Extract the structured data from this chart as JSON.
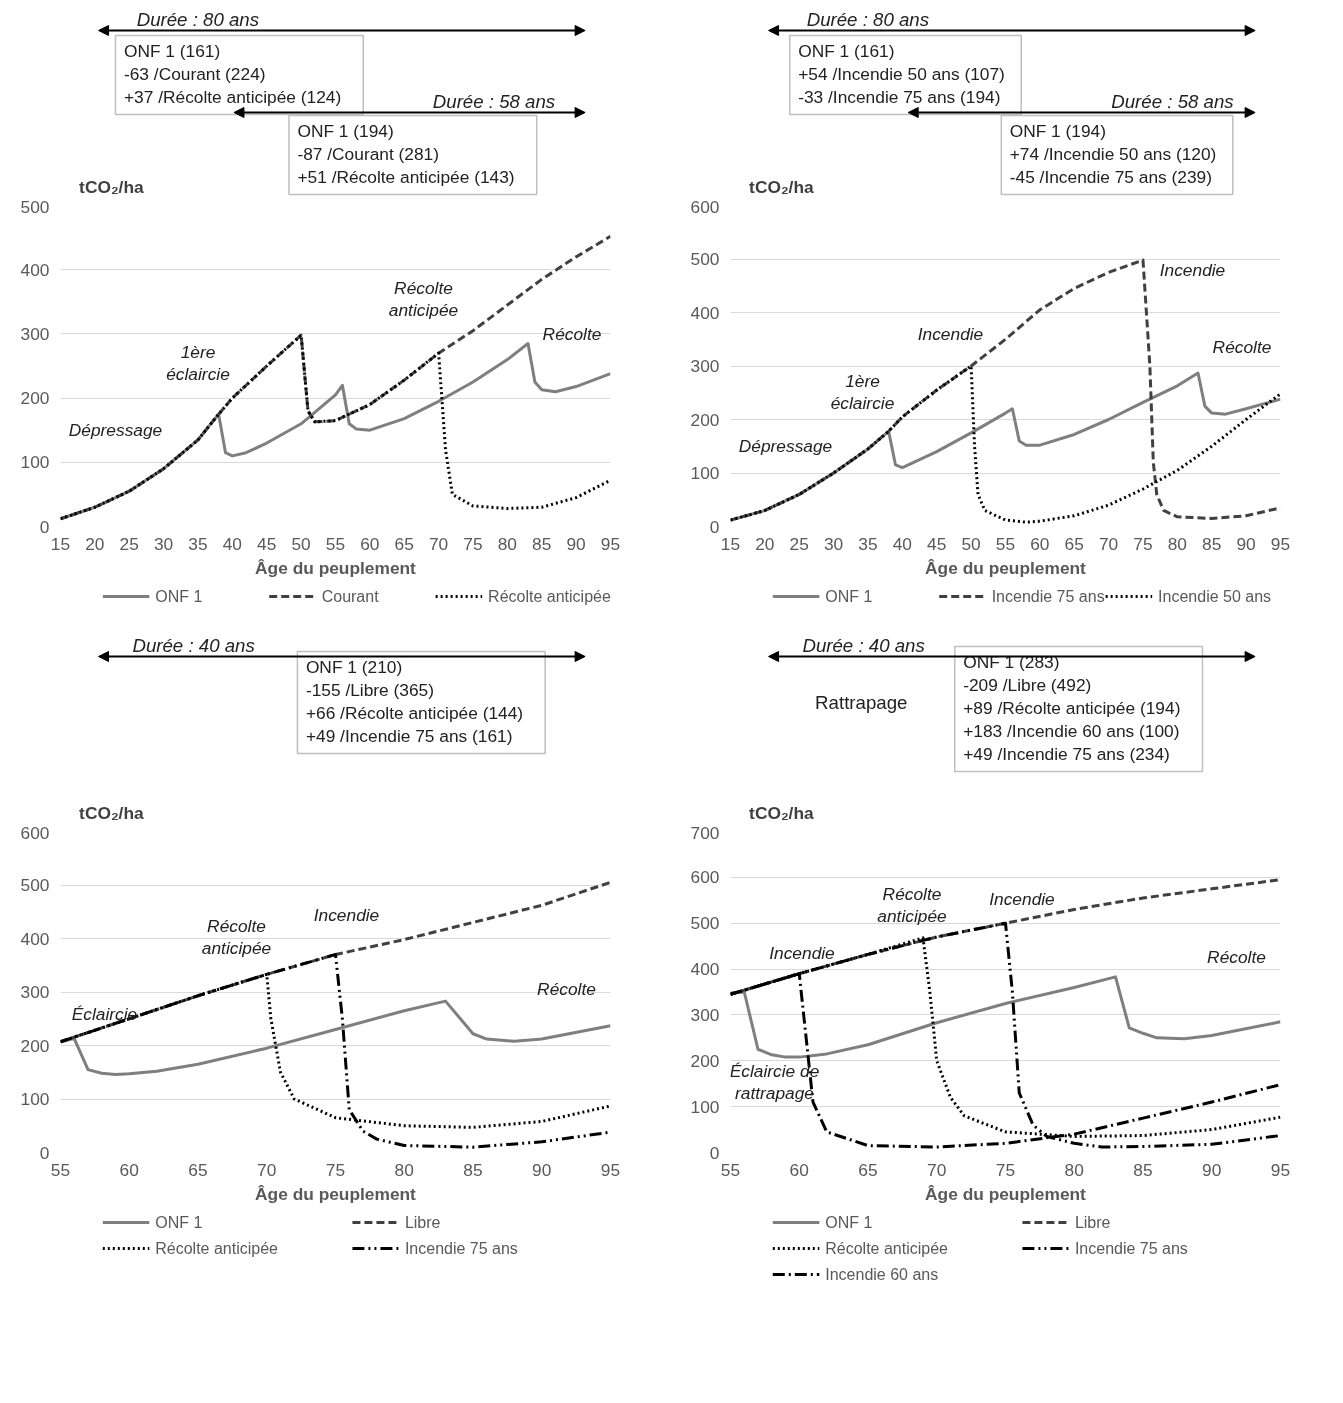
{
  "chart_data": [
    {
      "type": "line",
      "xlabel": "Âge du peuplement",
      "ylabel": "tCO₂/ha",
      "xlim": [
        15,
        95
      ],
      "xticks": [
        15,
        20,
        25,
        30,
        35,
        40,
        45,
        50,
        55,
        60,
        65,
        70,
        75,
        80,
        85,
        90,
        95
      ],
      "ylim": [
        0,
        500
      ],
      "yticks": [
        0,
        100,
        200,
        300,
        400,
        500
      ],
      "grid": "y",
      "legend": "bottom",
      "annotations": [
        "Durée : 80 ans",
        "ONF 1 (161)\n-63 /Courant (224)\n+37 /Récolte anticipée (124)",
        "Durée : 58 ans",
        "ONF 1 (194)\n-87 /Courant (281)\n+51 /Récolte anticipée (143)",
        "Dépressage",
        "1ère\néclaircie",
        "Récolte\nanticipée",
        "Récolte"
      ],
      "series": [
        {
          "name": "ONF 1",
          "color": "#7f7f7f",
          "line_style": "solid",
          "x": [
            15,
            20,
            25,
            30,
            35,
            38,
            39,
            40,
            42,
            45,
            50,
            55,
            56,
            57,
            58,
            60,
            65,
            70,
            75,
            80,
            83,
            84,
            85,
            87,
            90,
            95
          ],
          "values": [
            12,
            30,
            55,
            90,
            135,
            175,
            115,
            110,
            115,
            130,
            160,
            205,
            220,
            160,
            152,
            150,
            168,
            195,
            225,
            260,
            285,
            225,
            213,
            210,
            218,
            238
          ]
        },
        {
          "name": "Courant",
          "color": "#404040",
          "line_style": "dashed",
          "x": [
            15,
            20,
            25,
            30,
            35,
            38,
            40,
            45,
            50,
            51,
            52,
            55,
            60,
            65,
            70,
            75,
            80,
            85,
            90,
            95
          ],
          "values": [
            12,
            30,
            55,
            90,
            135,
            175,
            200,
            250,
            298,
            180,
            163,
            165,
            190,
            228,
            270,
            305,
            345,
            385,
            420,
            452
          ]
        },
        {
          "name": "Récolte anticipée",
          "color": "#000000",
          "line_style": "dotted",
          "x": [
            15,
            20,
            25,
            30,
            35,
            38,
            40,
            45,
            50,
            51,
            52,
            55,
            60,
            65,
            70,
            71,
            72,
            75,
            80,
            85,
            90,
            95
          ],
          "values": [
            12,
            30,
            55,
            90,
            135,
            175,
            200,
            250,
            298,
            180,
            163,
            165,
            190,
            228,
            270,
            120,
            50,
            32,
            28,
            30,
            45,
            72
          ]
        }
      ]
    },
    {
      "type": "line",
      "xlabel": "Âge du peuplement",
      "ylabel": "tCO₂/ha",
      "xlim": [
        15,
        95
      ],
      "xticks": [
        15,
        20,
        25,
        30,
        35,
        40,
        45,
        50,
        55,
        60,
        65,
        70,
        75,
        80,
        85,
        90,
        95
      ],
      "ylim": [
        0,
        600
      ],
      "yticks": [
        0,
        100,
        200,
        300,
        400,
        500,
        600
      ],
      "grid": "y",
      "legend": "bottom",
      "annotations": [
        "Durée : 80 ans",
        "ONF 1 (161)\n+54 /Incendie 50 ans (107)\n-33 /Incendie 75 ans (194)",
        "Durée : 58 ans",
        "ONF 1 (194)\n+74 /Incendie 50 ans (120)\n-45 /Incendie 75 ans (239)",
        "Dépressage",
        "1ère\néclaircie",
        "Incendie",
        "Incendie",
        "Récolte"
      ],
      "series": [
        {
          "name": "ONF 1",
          "color": "#7f7f7f",
          "line_style": "solid",
          "x": [
            15,
            20,
            25,
            30,
            35,
            38,
            39,
            40,
            45,
            50,
            55,
            56,
            57,
            58,
            60,
            65,
            70,
            75,
            80,
            83,
            84,
            85,
            87,
            90,
            95
          ],
          "values": [
            12,
            30,
            60,
            100,
            145,
            178,
            115,
            110,
            140,
            175,
            212,
            220,
            160,
            152,
            152,
            172,
            200,
            232,
            263,
            287,
            225,
            212,
            210,
            220,
            238
          ]
        },
        {
          "name": "Incendie 75 ans",
          "color": "#404040",
          "line_style": "dashed",
          "x": [
            15,
            20,
            25,
            30,
            35,
            38,
            40,
            45,
            50,
            55,
            60,
            65,
            70,
            75,
            76,
            76.5,
            77,
            78,
            80,
            85,
            90,
            95
          ],
          "values": [
            12,
            30,
            60,
            100,
            145,
            178,
            205,
            255,
            300,
            350,
            405,
            445,
            475,
            498,
            300,
            120,
            60,
            30,
            18,
            15,
            20,
            35
          ]
        },
        {
          "name": "Incendie 50 ans",
          "color": "#000000",
          "line_style": "dotted",
          "x": [
            15,
            20,
            25,
            30,
            35,
            38,
            40,
            45,
            50,
            50.5,
            51,
            52,
            55,
            58,
            60,
            65,
            70,
            75,
            80,
            85,
            90,
            95
          ],
          "values": [
            12,
            30,
            60,
            100,
            145,
            178,
            205,
            255,
            300,
            150,
            60,
            30,
            12,
            8,
            10,
            20,
            40,
            70,
            105,
            150,
            200,
            248
          ]
        }
      ]
    },
    {
      "type": "line",
      "xlabel": "Âge du peuplement",
      "ylabel": "tCO₂/ha",
      "xlim": [
        55,
        95
      ],
      "xticks": [
        55,
        60,
        65,
        70,
        75,
        80,
        85,
        90,
        95
      ],
      "ylim": [
        0,
        600
      ],
      "yticks": [
        0,
        100,
        200,
        300,
        400,
        500,
        600
      ],
      "grid": "y",
      "legend": "bottom",
      "annotations": [
        "Durée : 40 ans",
        "ONF 1 (210)\n-155 /Libre (365)\n+66 /Récolte anticipée (144)\n+49 /Incendie 75 ans (161)",
        "Éclaircie",
        "Récolte\nanticipée",
        "Incendie",
        "Récolte"
      ],
      "series": [
        {
          "name": "ONF 1",
          "color": "#7f7f7f",
          "line_style": "solid",
          "x": [
            55,
            56,
            57,
            58,
            59,
            60,
            62,
            65,
            70,
            75,
            80,
            83,
            85,
            86,
            88,
            90,
            95
          ],
          "values": [
            207,
            213,
            155,
            148,
            146,
            147,
            152,
            165,
            195,
            230,
            265,
            283,
            222,
            212,
            208,
            212,
            237
          ]
        },
        {
          "name": "Libre",
          "color": "#404040",
          "line_style": "dashed",
          "x": [
            55,
            60,
            65,
            70,
            75,
            80,
            85,
            90,
            95
          ],
          "values": [
            207,
            250,
            293,
            333,
            370,
            398,
            430,
            462,
            505
          ]
        },
        {
          "name": "Récolte anticipée",
          "color": "#000000",
          "line_style": "dotted",
          "x": [
            55,
            60,
            65,
            70,
            70.3,
            71,
            72,
            75,
            80,
            85,
            90,
            95
          ],
          "values": [
            207,
            250,
            293,
            333,
            250,
            150,
            100,
            65,
            50,
            47,
            58,
            87
          ]
        },
        {
          "name": "Incendie 75 ans",
          "color": "#000000",
          "line_style": "dashdotdot",
          "x": [
            55,
            60,
            65,
            70,
            75,
            75.5,
            76,
            77,
            78,
            80,
            85,
            90,
            95
          ],
          "values": [
            207,
            250,
            293,
            333,
            370,
            250,
            80,
            40,
            25,
            13,
            10,
            20,
            38
          ]
        }
      ]
    },
    {
      "type": "line",
      "xlabel": "Âge du peuplement",
      "ylabel": "tCO₂/ha",
      "xlim": [
        55,
        95
      ],
      "xticks": [
        55,
        60,
        65,
        70,
        75,
        80,
        85,
        90,
        95
      ],
      "ylim": [
        0,
        700
      ],
      "yticks": [
        0,
        100,
        200,
        300,
        400,
        500,
        600,
        700
      ],
      "grid": "y",
      "legend": "bottom",
      "annotations": [
        "Durée : 40 ans",
        "Rattrapage",
        "ONF 1 (283)\n-209 /Libre (492)\n+89 /Récolte anticipée (194)\n+183 /Incendie 60 ans (100)\n+49 /Incendie 75 ans (234)",
        "Incendie",
        "Récolte\nanticipée",
        "Incendie",
        "Récolte",
        "Éclaircie de\nrattrapage"
      ],
      "series": [
        {
          "name": "ONF 1",
          "color": "#7f7f7f",
          "line_style": "solid",
          "x": [
            55,
            56,
            57,
            58,
            59,
            60,
            62,
            65,
            70,
            75,
            80,
            83,
            84,
            85,
            86,
            88,
            90,
            95
          ],
          "values": [
            348,
            350,
            225,
            213,
            208,
            208,
            215,
            235,
            283,
            325,
            360,
            383,
            272,
            260,
            250,
            248,
            255,
            285
          ]
        },
        {
          "name": "Libre",
          "color": "#404040",
          "line_style": "dashed",
          "x": [
            55,
            60,
            65,
            70,
            75,
            80,
            85,
            90,
            95
          ],
          "values": [
            345,
            390,
            432,
            470,
            500,
            530,
            555,
            575,
            595
          ]
        },
        {
          "name": "Récolte anticipée",
          "color": "#000000",
          "line_style": "dotted",
          "x": [
            55,
            60,
            65,
            69,
            69.5,
            70,
            71,
            72,
            75,
            80,
            85,
            90,
            95
          ],
          "values": [
            345,
            390,
            432,
            468,
            350,
            200,
            120,
            80,
            45,
            35,
            37,
            50,
            77
          ]
        },
        {
          "name": "Incendie 75 ans",
          "color": "#000000",
          "line_style": "dashdotdot",
          "x": [
            55,
            60,
            65,
            70,
            75,
            75.5,
            76,
            77,
            78,
            80,
            82,
            85,
            90,
            95
          ],
          "values": [
            345,
            390,
            432,
            470,
            500,
            350,
            130,
            60,
            35,
            20,
            12,
            13,
            18,
            37
          ]
        },
        {
          "name": "Incendie 60 ans",
          "color": "#000000",
          "line_style": "dashdot",
          "x": [
            55,
            60,
            60.5,
            61,
            62,
            65,
            70,
            75,
            80,
            85,
            90,
            95
          ],
          "values": [
            345,
            390,
            250,
            110,
            45,
            15,
            12,
            20,
            40,
            75,
            110,
            148
          ]
        }
      ]
    }
  ]
}
